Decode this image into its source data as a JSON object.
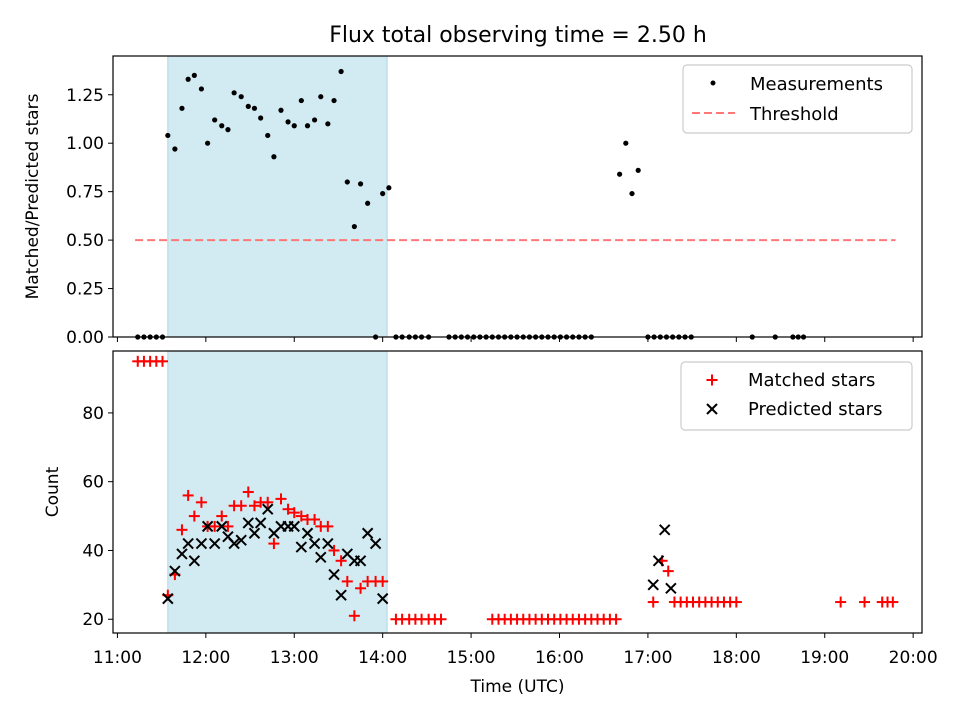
{
  "title": "Flux total observing time = 2.50 h",
  "colors": {
    "shade": "#add8e6",
    "measurement": "#000000",
    "threshold": "#ff7777",
    "matched": "#ff0000",
    "predicted": "#000000"
  },
  "chart_data": [
    {
      "type": "scatter",
      "ylabel": "Matched/Predicted stars",
      "xlabel": "",
      "xlim": [
        10.95,
        20.1
      ],
      "ylim": [
        0,
        1.45
      ],
      "yticks": [
        "0.00",
        "0.25",
        "0.50",
        "0.75",
        "1.00",
        "1.25"
      ],
      "shaded_span": [
        11.57,
        14.05
      ],
      "threshold": {
        "value": 0.5,
        "x": [
          11.2,
          19.8
        ]
      },
      "legend": {
        "position": "top-right",
        "entries": [
          "Measurements",
          "Threshold"
        ]
      },
      "series": [
        {
          "name": "Measurements",
          "points": [
            [
              11.23,
              0
            ],
            [
              11.3,
              0
            ],
            [
              11.37,
              0
            ],
            [
              11.44,
              0
            ],
            [
              11.51,
              0
            ],
            [
              11.57,
              1.04
            ],
            [
              11.65,
              0.97
            ],
            [
              11.73,
              1.18
            ],
            [
              11.8,
              1.33
            ],
            [
              11.87,
              1.35
            ],
            [
              11.95,
              1.28
            ],
            [
              12.02,
              1.0
            ],
            [
              12.1,
              1.12
            ],
            [
              12.18,
              1.09
            ],
            [
              12.25,
              1.07
            ],
            [
              12.32,
              1.26
            ],
            [
              12.4,
              1.24
            ],
            [
              12.48,
              1.19
            ],
            [
              12.55,
              1.18
            ],
            [
              12.62,
              1.13
            ],
            [
              12.7,
              1.04
            ],
            [
              12.77,
              0.93
            ],
            [
              12.85,
              1.17
            ],
            [
              12.93,
              1.11
            ],
            [
              13.0,
              1.09
            ],
            [
              13.08,
              1.22
            ],
            [
              13.15,
              1.09
            ],
            [
              13.23,
              1.12
            ],
            [
              13.3,
              1.24
            ],
            [
              13.38,
              1.1
            ],
            [
              13.45,
              1.22
            ],
            [
              13.53,
              1.37
            ],
            [
              13.6,
              0.8
            ],
            [
              13.68,
              0.57
            ],
            [
              13.75,
              0.79
            ],
            [
              13.83,
              0.69
            ],
            [
              13.92,
              0
            ],
            [
              14.0,
              0.74
            ],
            [
              14.07,
              0.77
            ],
            [
              14.15,
              0
            ],
            [
              14.22,
              0
            ],
            [
              14.3,
              0
            ],
            [
              14.37,
              0
            ],
            [
              14.44,
              0
            ],
            [
              14.52,
              0
            ],
            [
              14.75,
              0
            ],
            [
              14.82,
              0
            ],
            [
              14.89,
              0
            ],
            [
              14.96,
              0
            ],
            [
              15.03,
              0
            ],
            [
              15.1,
              0
            ],
            [
              15.17,
              0
            ],
            [
              15.24,
              0
            ],
            [
              15.31,
              0
            ],
            [
              15.38,
              0
            ],
            [
              15.45,
              0
            ],
            [
              15.52,
              0
            ],
            [
              15.59,
              0
            ],
            [
              15.66,
              0
            ],
            [
              15.73,
              0
            ],
            [
              15.8,
              0
            ],
            [
              15.87,
              0
            ],
            [
              15.94,
              0
            ],
            [
              16.01,
              0
            ],
            [
              16.08,
              0
            ],
            [
              16.15,
              0
            ],
            [
              16.22,
              0
            ],
            [
              16.29,
              0
            ],
            [
              16.36,
              0
            ],
            [
              16.68,
              0.84
            ],
            [
              16.75,
              1.0
            ],
            [
              16.82,
              0.74
            ],
            [
              16.89,
              0.86
            ],
            [
              17.0,
              0
            ],
            [
              17.07,
              0
            ],
            [
              17.14,
              0
            ],
            [
              17.21,
              0
            ],
            [
              17.28,
              0
            ],
            [
              17.35,
              0
            ],
            [
              17.42,
              0
            ],
            [
              17.49,
              0
            ],
            [
              18.18,
              0
            ],
            [
              18.44,
              0
            ],
            [
              18.64,
              0
            ],
            [
              18.7,
              0
            ],
            [
              18.76,
              0
            ]
          ]
        }
      ]
    },
    {
      "type": "scatter",
      "ylabel": "Count",
      "xlabel": "Time (UTC)",
      "xlim": [
        10.95,
        20.1
      ],
      "ylim": [
        16,
        98
      ],
      "yticks": [
        "20",
        "40",
        "60",
        "80"
      ],
      "xticks": [
        "11:00",
        "12:00",
        "13:00",
        "14:00",
        "15:00",
        "16:00",
        "17:00",
        "18:00",
        "19:00",
        "20:00"
      ],
      "shaded_span": [
        11.57,
        14.05
      ],
      "legend": {
        "position": "top-right",
        "entries": [
          "Matched stars",
          "Predicted stars"
        ]
      },
      "series": [
        {
          "name": "Matched stars",
          "marker": "plus",
          "points": [
            [
              11.23,
              95
            ],
            [
              11.3,
              95
            ],
            [
              11.37,
              95
            ],
            [
              11.44,
              95
            ],
            [
              11.51,
              95
            ],
            [
              11.57,
              27
            ],
            [
              11.65,
              33
            ],
            [
              11.73,
              46
            ],
            [
              11.8,
              56
            ],
            [
              11.87,
              50
            ],
            [
              11.95,
              54
            ],
            [
              12.02,
              47
            ],
            [
              12.1,
              47
            ],
            [
              12.18,
              50
            ],
            [
              12.25,
              47
            ],
            [
              12.32,
              53
            ],
            [
              12.4,
              53
            ],
            [
              12.48,
              57
            ],
            [
              12.55,
              53
            ],
            [
              12.62,
              54
            ],
            [
              12.7,
              54
            ],
            [
              12.77,
              42
            ],
            [
              12.85,
              55
            ],
            [
              12.93,
              52
            ],
            [
              13.0,
              51
            ],
            [
              13.08,
              50
            ],
            [
              13.15,
              49
            ],
            [
              13.23,
              49
            ],
            [
              13.3,
              47
            ],
            [
              13.38,
              47
            ],
            [
              13.45,
              40
            ],
            [
              13.53,
              37
            ],
            [
              13.6,
              31
            ],
            [
              13.68,
              21
            ],
            [
              13.75,
              29
            ],
            [
              13.83,
              31
            ],
            [
              13.92,
              31
            ],
            [
              14.0,
              31
            ],
            [
              14.15,
              20
            ],
            [
              14.22,
              20
            ],
            [
              14.3,
              20
            ],
            [
              14.37,
              20
            ],
            [
              14.44,
              20
            ],
            [
              14.52,
              20
            ],
            [
              14.59,
              20
            ],
            [
              14.66,
              20
            ],
            [
              15.24,
              20
            ],
            [
              15.31,
              20
            ],
            [
              15.38,
              20
            ],
            [
              15.45,
              20
            ],
            [
              15.52,
              20
            ],
            [
              15.59,
              20
            ],
            [
              15.66,
              20
            ],
            [
              15.73,
              20
            ],
            [
              15.8,
              20
            ],
            [
              15.87,
              20
            ],
            [
              15.94,
              20
            ],
            [
              16.01,
              20
            ],
            [
              16.08,
              20
            ],
            [
              16.15,
              20
            ],
            [
              16.22,
              20
            ],
            [
              16.29,
              20
            ],
            [
              16.36,
              20
            ],
            [
              16.43,
              20
            ],
            [
              16.5,
              20
            ],
            [
              16.57,
              20
            ],
            [
              16.64,
              20
            ],
            [
              17.06,
              25
            ],
            [
              17.16,
              37
            ],
            [
              17.23,
              34
            ],
            [
              17.3,
              25
            ],
            [
              17.37,
              25
            ],
            [
              17.44,
              25
            ],
            [
              17.51,
              25
            ],
            [
              17.58,
              25
            ],
            [
              17.65,
              25
            ],
            [
              17.72,
              25
            ],
            [
              17.79,
              25
            ],
            [
              17.86,
              25
            ],
            [
              17.93,
              25
            ],
            [
              18.0,
              25
            ],
            [
              19.18,
              25
            ],
            [
              19.45,
              25
            ],
            [
              19.65,
              25
            ],
            [
              19.71,
              25
            ],
            [
              19.77,
              25
            ]
          ]
        },
        {
          "name": "Predicted stars",
          "marker": "x",
          "points": [
            [
              11.57,
              26
            ],
            [
              11.65,
              34
            ],
            [
              11.73,
              39
            ],
            [
              11.8,
              42
            ],
            [
              11.87,
              37
            ],
            [
              11.95,
              42
            ],
            [
              12.02,
              47
            ],
            [
              12.1,
              42
            ],
            [
              12.18,
              47
            ],
            [
              12.25,
              44
            ],
            [
              12.32,
              42
            ],
            [
              12.4,
              43
            ],
            [
              12.48,
              48
            ],
            [
              12.55,
              45
            ],
            [
              12.62,
              48
            ],
            [
              12.7,
              52
            ],
            [
              12.77,
              45
            ],
            [
              12.85,
              47
            ],
            [
              12.93,
              47
            ],
            [
              13.0,
              47
            ],
            [
              13.08,
              41
            ],
            [
              13.15,
              45
            ],
            [
              13.23,
              42
            ],
            [
              13.3,
              38
            ],
            [
              13.38,
              42
            ],
            [
              13.45,
              33
            ],
            [
              13.53,
              27
            ],
            [
              13.6,
              39
            ],
            [
              13.68,
              37
            ],
            [
              13.75,
              37
            ],
            [
              13.83,
              45
            ],
            [
              13.92,
              42
            ],
            [
              14.0,
              26
            ],
            [
              17.06,
              30
            ],
            [
              17.12,
              37
            ],
            [
              17.19,
              46
            ],
            [
              17.26,
              29
            ]
          ]
        }
      ]
    }
  ]
}
